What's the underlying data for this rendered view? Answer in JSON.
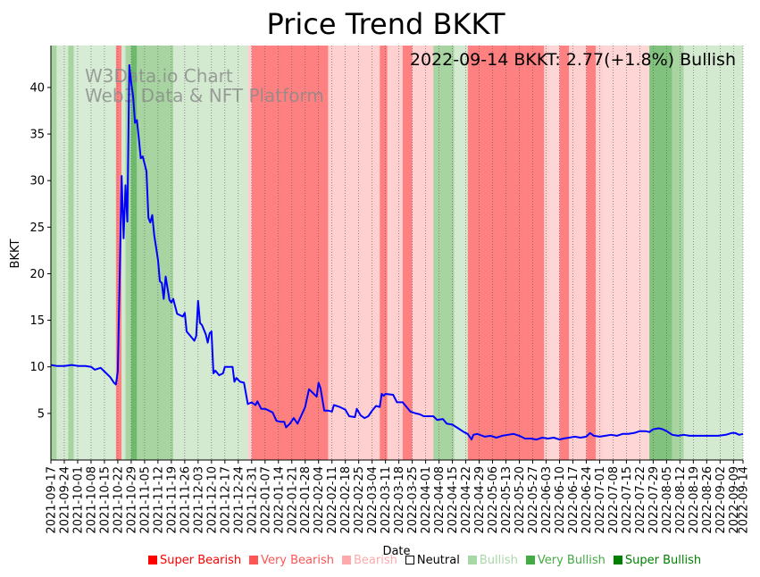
{
  "chart_data": {
    "type": "line",
    "title": "Price Trend BKKT",
    "xlabel": "Date",
    "ylabel": "BKKT",
    "ylim": [
      0,
      44.5
    ],
    "yticks": [
      5,
      10,
      15,
      20,
      25,
      30,
      35,
      40
    ],
    "annotation": "2022-09-14 BKKT: 2.77(+1.8%) Bullish",
    "watermark": [
      "W3Data.io Chart",
      "Web3 Data & NFT Platform"
    ],
    "x_start": "2021-09-17",
    "x_end": "2022-09-14",
    "xticks": [
      "2021-09-17",
      "2021-09-24",
      "2021-10-01",
      "2021-10-08",
      "2021-10-15",
      "2021-10-22",
      "2021-10-29",
      "2021-11-05",
      "2021-11-12",
      "2021-11-19",
      "2021-11-26",
      "2021-12-03",
      "2021-12-10",
      "2021-12-17",
      "2021-12-24",
      "2021-12-31",
      "2022-01-07",
      "2022-01-14",
      "2022-01-21",
      "2022-01-28",
      "2022-02-04",
      "2022-02-11",
      "2022-02-18",
      "2022-02-25",
      "2022-03-04",
      "2022-03-11",
      "2022-03-18",
      "2022-03-25",
      "2022-04-01",
      "2022-04-08",
      "2022-04-15",
      "2022-04-22",
      "2022-04-29",
      "2022-05-06",
      "2022-05-13",
      "2022-05-20",
      "2022-05-27",
      "2022-06-03",
      "2022-06-10",
      "2022-06-17",
      "2022-06-24",
      "2022-07-01",
      "2022-07-08",
      "2022-07-15",
      "2022-07-22",
      "2022-07-29",
      "2022-08-05",
      "2022-08-12",
      "2022-08-19",
      "2022-08-26",
      "2022-09-02",
      "2022-09-09",
      "2022-09-14"
    ],
    "series": [
      {
        "name": "BKKT",
        "color": "#0000ff",
        "points": [
          [
            "2021-09-17",
            10.2
          ],
          [
            "2021-09-20",
            10.1
          ],
          [
            "2021-09-24",
            10.1
          ],
          [
            "2021-09-28",
            10.2
          ],
          [
            "2021-10-01",
            10.1
          ],
          [
            "2021-10-05",
            10.1
          ],
          [
            "2021-10-08",
            10.0
          ],
          [
            "2021-10-10",
            9.7
          ],
          [
            "2021-10-13",
            9.9
          ],
          [
            "2021-10-15",
            9.5
          ],
          [
            "2021-10-18",
            8.9
          ],
          [
            "2021-10-20",
            8.3
          ],
          [
            "2021-10-21",
            8.1
          ],
          [
            "2021-10-22",
            9.5
          ],
          [
            "2021-10-23",
            20.0
          ],
          [
            "2021-10-24",
            30.5
          ],
          [
            "2021-10-25",
            23.8
          ],
          [
            "2021-10-26",
            29.5
          ],
          [
            "2021-10-27",
            25.6
          ],
          [
            "2021-10-28",
            42.4
          ],
          [
            "2021-10-29",
            40.5
          ],
          [
            "2021-10-30",
            39.0
          ],
          [
            "2021-10-31",
            36.2
          ],
          [
            "2021-11-01",
            36.5
          ],
          [
            "2021-11-02",
            34.5
          ],
          [
            "2021-11-03",
            32.4
          ],
          [
            "2021-11-04",
            32.6
          ],
          [
            "2021-11-06",
            31.0
          ],
          [
            "2021-11-07",
            26.0
          ],
          [
            "2021-11-08",
            25.5
          ],
          [
            "2021-11-09",
            26.3
          ],
          [
            "2021-11-10",
            24.2
          ],
          [
            "2021-11-12",
            21.5
          ],
          [
            "2021-11-13",
            19.2
          ],
          [
            "2021-11-14",
            19.0
          ],
          [
            "2021-11-15",
            17.3
          ],
          [
            "2021-11-16",
            19.7
          ],
          [
            "2021-11-18",
            17.2
          ],
          [
            "2021-11-19",
            16.9
          ],
          [
            "2021-11-20",
            17.3
          ],
          [
            "2021-11-22",
            15.7
          ],
          [
            "2021-11-25",
            15.4
          ],
          [
            "2021-11-26",
            15.8
          ],
          [
            "2021-11-27",
            13.8
          ],
          [
            "2021-11-29",
            13.3
          ],
          [
            "2021-12-01",
            12.8
          ],
          [
            "2021-12-02",
            13.3
          ],
          [
            "2021-12-03",
            17.1
          ],
          [
            "2021-12-04",
            14.7
          ],
          [
            "2021-12-05",
            14.5
          ],
          [
            "2021-12-07",
            13.5
          ],
          [
            "2021-12-08",
            12.6
          ],
          [
            "2021-12-09",
            13.6
          ],
          [
            "2021-12-10",
            13.8
          ],
          [
            "2021-12-11",
            9.3
          ],
          [
            "2021-12-12",
            9.6
          ],
          [
            "2021-12-14",
            9.1
          ],
          [
            "2021-12-16",
            9.3
          ],
          [
            "2021-12-17",
            10.0
          ],
          [
            "2021-12-21",
            10.0
          ],
          [
            "2021-12-22",
            8.4
          ],
          [
            "2021-12-23",
            8.8
          ],
          [
            "2021-12-25",
            8.4
          ],
          [
            "2021-12-27",
            8.3
          ],
          [
            "2021-12-29",
            6.0
          ],
          [
            "2021-12-31",
            6.2
          ],
          [
            "2022-01-02",
            5.9
          ],
          [
            "2022-01-03",
            6.3
          ],
          [
            "2022-01-05",
            5.5
          ],
          [
            "2022-01-07",
            5.5
          ],
          [
            "2022-01-09",
            5.3
          ],
          [
            "2022-01-11",
            5.1
          ],
          [
            "2022-01-13",
            4.2
          ],
          [
            "2022-01-15",
            4.1
          ],
          [
            "2022-01-17",
            4.1
          ],
          [
            "2022-01-18",
            3.5
          ],
          [
            "2022-01-20",
            3.9
          ],
          [
            "2022-01-22",
            4.5
          ],
          [
            "2022-01-24",
            3.9
          ],
          [
            "2022-01-26",
            4.8
          ],
          [
            "2022-01-28",
            5.7
          ],
          [
            "2022-01-30",
            7.6
          ],
          [
            "2022-02-01",
            7.2
          ],
          [
            "2022-02-03",
            6.8
          ],
          [
            "2022-02-04",
            8.3
          ],
          [
            "2022-02-05",
            7.7
          ],
          [
            "2022-02-07",
            5.3
          ],
          [
            "2022-02-09",
            5.3
          ],
          [
            "2022-02-11",
            5.2
          ],
          [
            "2022-02-12",
            5.9
          ],
          [
            "2022-02-15",
            5.7
          ],
          [
            "2022-02-18",
            5.4
          ],
          [
            "2022-02-20",
            4.7
          ],
          [
            "2022-02-23",
            4.6
          ],
          [
            "2022-02-24",
            5.5
          ],
          [
            "2022-02-26",
            4.8
          ],
          [
            "2022-02-28",
            4.5
          ],
          [
            "2022-03-02",
            4.7
          ],
          [
            "2022-03-04",
            5.3
          ],
          [
            "2022-03-06",
            5.8
          ],
          [
            "2022-03-08",
            5.7
          ],
          [
            "2022-03-09",
            7.1
          ],
          [
            "2022-03-10",
            6.9
          ],
          [
            "2022-03-11",
            7.1
          ],
          [
            "2022-03-15",
            7.0
          ],
          [
            "2022-03-17",
            6.2
          ],
          [
            "2022-03-20",
            6.2
          ],
          [
            "2022-03-24",
            5.2
          ],
          [
            "2022-03-27",
            5.0
          ],
          [
            "2022-03-29",
            4.9
          ],
          [
            "2022-03-31",
            4.7
          ],
          [
            "2022-04-05",
            4.7
          ],
          [
            "2022-04-07",
            4.3
          ],
          [
            "2022-04-10",
            4.4
          ],
          [
            "2022-04-12",
            3.9
          ],
          [
            "2022-04-15",
            3.8
          ],
          [
            "2022-04-18",
            3.4
          ],
          [
            "2022-04-21",
            3.0
          ],
          [
            "2022-04-23",
            2.8
          ],
          [
            "2022-04-25",
            2.2
          ],
          [
            "2022-04-26",
            2.7
          ],
          [
            "2022-04-28",
            2.8
          ],
          [
            "2022-05-02",
            2.5
          ],
          [
            "2022-05-05",
            2.6
          ],
          [
            "2022-05-08",
            2.4
          ],
          [
            "2022-05-11",
            2.6
          ],
          [
            "2022-05-14",
            2.7
          ],
          [
            "2022-05-17",
            2.8
          ],
          [
            "2022-05-20",
            2.6
          ],
          [
            "2022-05-23",
            2.3
          ],
          [
            "2022-05-26",
            2.3
          ],
          [
            "2022-05-29",
            2.2
          ],
          [
            "2022-06-01",
            2.4
          ],
          [
            "2022-06-04",
            2.3
          ],
          [
            "2022-06-07",
            2.4
          ],
          [
            "2022-06-10",
            2.2
          ],
          [
            "2022-06-12",
            2.3
          ],
          [
            "2022-06-15",
            2.4
          ],
          [
            "2022-06-18",
            2.5
          ],
          [
            "2022-06-21",
            2.4
          ],
          [
            "2022-06-24",
            2.5
          ],
          [
            "2022-06-26",
            2.9
          ],
          [
            "2022-06-28",
            2.6
          ],
          [
            "2022-07-01",
            2.5
          ],
          [
            "2022-07-04",
            2.6
          ],
          [
            "2022-07-07",
            2.7
          ],
          [
            "2022-07-10",
            2.6
          ],
          [
            "2022-07-13",
            2.8
          ],
          [
            "2022-07-16",
            2.8
          ],
          [
            "2022-07-19",
            2.9
          ],
          [
            "2022-07-22",
            3.1
          ],
          [
            "2022-07-25",
            3.1
          ],
          [
            "2022-07-27",
            3.0
          ],
          [
            "2022-07-29",
            3.3
          ],
          [
            "2022-08-01",
            3.4
          ],
          [
            "2022-08-03",
            3.3
          ],
          [
            "2022-08-05",
            3.1
          ],
          [
            "2022-08-08",
            2.7
          ],
          [
            "2022-08-11",
            2.6
          ],
          [
            "2022-08-14",
            2.7
          ],
          [
            "2022-08-17",
            2.6
          ],
          [
            "2022-08-20",
            2.6
          ],
          [
            "2022-08-24",
            2.6
          ],
          [
            "2022-08-28",
            2.6
          ],
          [
            "2022-09-01",
            2.6
          ],
          [
            "2022-09-05",
            2.7
          ],
          [
            "2022-09-08",
            2.9
          ],
          [
            "2022-09-10",
            2.9
          ],
          [
            "2022-09-12",
            2.7
          ],
          [
            "2022-09-14",
            2.8
          ]
        ]
      }
    ],
    "sentiment_periods": [
      {
        "start": "2021-09-17",
        "end": "2021-09-20",
        "level": "Very Bullish"
      },
      {
        "start": "2021-09-20",
        "end": "2021-09-26",
        "level": "Bullish"
      },
      {
        "start": "2021-09-26",
        "end": "2021-09-29",
        "level": "Very Bullish"
      },
      {
        "start": "2021-09-29",
        "end": "2021-10-21",
        "level": "Neutral-light"
      },
      {
        "start": "2021-10-21",
        "end": "2021-10-24",
        "level": "Very Bearish"
      },
      {
        "start": "2021-10-24",
        "end": "2021-10-26",
        "level": "Bullish"
      },
      {
        "start": "2021-10-26",
        "end": "2021-10-29",
        "level": "Very Bullish"
      },
      {
        "start": "2021-10-29",
        "end": "2021-11-01",
        "level": "Super Bullish"
      },
      {
        "start": "2021-11-01",
        "end": "2021-11-20",
        "level": "Very Bullish"
      },
      {
        "start": "2021-11-20",
        "end": "2021-12-29",
        "level": "Bullish"
      },
      {
        "start": "2021-12-29",
        "end": "2021-12-31",
        "level": "Bearish"
      },
      {
        "start": "2021-12-31",
        "end": "2022-02-09",
        "level": "Very Bearish"
      },
      {
        "start": "2022-02-09",
        "end": "2022-03-08",
        "level": "Bearish"
      },
      {
        "start": "2022-03-08",
        "end": "2022-03-12",
        "level": "Very Bearish"
      },
      {
        "start": "2022-03-12",
        "end": "2022-03-20",
        "level": "Bearish"
      },
      {
        "start": "2022-03-20",
        "end": "2022-03-25",
        "level": "Very Bearish"
      },
      {
        "start": "2022-03-25",
        "end": "2022-04-05",
        "level": "Bearish"
      },
      {
        "start": "2022-04-05",
        "end": "2022-04-16",
        "level": "Very Bullish"
      },
      {
        "start": "2022-04-16",
        "end": "2022-04-23",
        "level": "Bullish"
      },
      {
        "start": "2022-04-23",
        "end": "2022-05-23",
        "level": "Very Bearish"
      },
      {
        "start": "2022-05-23",
        "end": "2022-06-02",
        "level": "Very Bearish"
      },
      {
        "start": "2022-06-02",
        "end": "2022-06-05",
        "level": "Bearish"
      },
      {
        "start": "2022-06-05",
        "end": "2022-06-10",
        "level": "Bearish-light"
      },
      {
        "start": "2022-06-10",
        "end": "2022-06-15",
        "level": "Very Bearish"
      },
      {
        "start": "2022-06-15",
        "end": "2022-06-24",
        "level": "Bearish"
      },
      {
        "start": "2022-06-24",
        "end": "2022-06-29",
        "level": "Very Bearish"
      },
      {
        "start": "2022-06-29",
        "end": "2022-07-03",
        "level": "Bearish"
      },
      {
        "start": "2022-07-03",
        "end": "2022-07-27",
        "level": "Bearish-light"
      },
      {
        "start": "2022-07-27",
        "end": "2022-08-08",
        "level": "Super Bullish-soft"
      },
      {
        "start": "2022-08-08",
        "end": "2022-08-14",
        "level": "Very Bullish"
      },
      {
        "start": "2022-08-14",
        "end": "2022-08-19",
        "level": "Bullish"
      },
      {
        "start": "2022-08-19",
        "end": "2022-09-14",
        "level": "Bullish"
      }
    ],
    "sentiment_colors": {
      "Very Bullish": "#a8d4a2",
      "Super Bullish": "#6cba6b",
      "Super Bullish-soft": "#82c27f",
      "Bullish": "#d3ead0",
      "Neutral-light": "#d7ecd4",
      "Bearish": "#ffd0d0",
      "Bearish-light": "#ffd6d6",
      "Very Bearish": "#ff8080"
    },
    "legend": [
      {
        "label": "Super Bearish",
        "color": "#ff0000"
      },
      {
        "label": "Very Bearish",
        "color": "#ff5555"
      },
      {
        "label": "Bearish",
        "color": "#ffaaaa"
      },
      {
        "label": "Neutral",
        "color": "#000000",
        "hollow": true
      },
      {
        "label": "Bullish",
        "color": "#a8d8a8"
      },
      {
        "label": "Very Bullish",
        "color": "#44aa44"
      },
      {
        "label": "Super Bullish",
        "color": "#008000"
      }
    ]
  }
}
